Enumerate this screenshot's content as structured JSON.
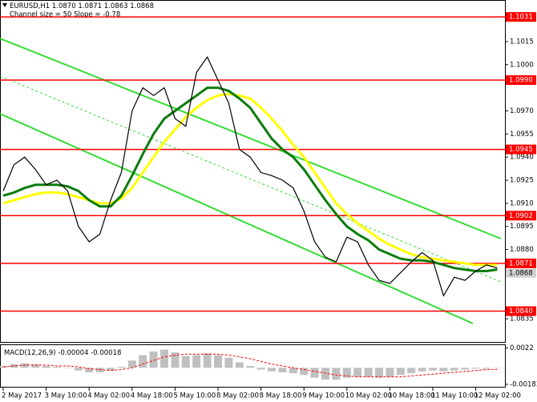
{
  "chart_data": [
    {
      "type": "line",
      "symbol": "EURUSD,H1",
      "ohlc": {
        "values": [
          1.087,
          1.0871,
          1.0863,
          1.0868
        ],
        "value_labels": [
          "1.0870",
          "1.0871",
          "1.0863",
          "1.0868"
        ]
      },
      "annotation": "Channel size = 50 Slope = -0.78",
      "categories": [
        "2 May 2017",
        null,
        null,
        null,
        "3 May 10:00",
        null,
        null,
        null,
        "4 May 02:00",
        null,
        null,
        null,
        "4 May 18:00",
        null,
        null,
        null,
        "5 May 10:00",
        null,
        null,
        null,
        "8 May 02:00",
        null,
        null,
        null,
        "8 May 18:00",
        null,
        null,
        null,
        "9 May 10:00",
        null,
        null,
        null,
        "10 May 02:00",
        null,
        null,
        null,
        "10 May 18:00",
        null,
        null,
        null,
        "11 May 10:00",
        null,
        null,
        null,
        "12 May 02:00",
        null,
        null
      ],
      "series": [
        {
          "color": "#000000",
          "values": [
            1.0918,
            1.0935,
            1.094,
            1.0932,
            1.0922,
            1.0925,
            1.0918,
            1.0895,
            1.0885,
            1.089,
            1.0912,
            1.093,
            1.097,
            1.0985,
            1.098,
            1.0985,
            1.0965,
            1.096,
            1.0995,
            1.1005,
            1.099,
            1.0975,
            1.0945,
            1.094,
            1.093,
            1.0928,
            1.0925,
            1.092,
            1.0905,
            1.0885,
            1.0875,
            1.0872,
            1.0888,
            1.0885,
            1.087,
            1.086,
            1.0858,
            1.0865,
            1.0872,
            1.0878,
            1.0873,
            1.085,
            1.0862,
            1.086,
            1.0866,
            1.087,
            1.0868
          ]
        },
        {
          "color": "#0b7d0b",
          "values": [
            1.0915,
            1.0917,
            1.092,
            1.0922,
            1.0922,
            1.0922,
            1.0921,
            1.0918,
            1.0912,
            1.0908,
            1.0908,
            1.0915,
            1.0928,
            1.0942,
            1.0955,
            1.0965,
            1.097,
            1.0975,
            1.098,
            1.0985,
            1.0985,
            1.0983,
            1.0978,
            1.0972,
            1.0962,
            1.0952,
            1.0945,
            1.094,
            1.0932,
            1.0922,
            1.0912,
            1.0903,
            1.0895,
            1.089,
            1.0886,
            1.088,
            1.0877,
            1.0874,
            1.0873,
            1.0873,
            1.0872,
            1.087,
            1.0868,
            1.0867,
            1.0866,
            1.0866,
            1.0867
          ]
        },
        {
          "color": "#ffff00",
          "values": [
            1.091,
            1.0912,
            1.0914,
            1.0916,
            1.0917,
            1.0917,
            1.0916,
            1.0914,
            1.0912,
            1.091,
            1.091,
            1.0913,
            1.092,
            1.093,
            1.094,
            1.095,
            1.0958,
            1.0966,
            1.0972,
            1.0977,
            1.098,
            1.0981,
            1.098,
            1.0978,
            1.0972,
            1.0965,
            1.0957,
            1.0948,
            1.094,
            1.093,
            1.092,
            1.091,
            1.0903,
            1.0897,
            1.0892,
            1.0887,
            1.0883,
            1.088,
            1.0877,
            1.0875,
            1.0874,
            1.0873,
            1.0872,
            1.0871,
            1.087,
            1.087,
            1.087
          ]
        }
      ],
      "ylim": [
        1.082,
        1.1042
      ],
      "yticks": [
        1.1015,
        {
          "value": 1.1,
          "label": "1.1000"
        },
        {
          "value": 1.097,
          "label": "1.0970"
        },
        1.0955,
        {
          "value": 1.094,
          "label": "1.0940"
        },
        1.0925,
        {
          "value": 1.091,
          "label": "1.0910"
        },
        1.0895,
        {
          "value": 1.088,
          "label": "1.0880"
        },
        1.0865,
        1.0835
      ],
      "levels": [
        1.1031,
        {
          "value": 1.099,
          "label": "1.0990"
        },
        1.0945,
        1.0902,
        1.0871,
        {
          "value": 1.084,
          "label": "1.0840"
        }
      ],
      "level_color": "#ff0000",
      "last_price": 1.0868
    },
    {
      "type": "bar",
      "title": "MACD(12,26,9)",
      "series": [
        {
          "type": "bar",
          "color": "#c0c0c0",
          "values": [
            0.0002,
            0.0004,
            0.0005,
            0.0004,
            0.0002,
            0.0001,
            0.0,
            -0.0003,
            -0.0005,
            -0.0005,
            -0.0003,
            0.0001,
            0.0008,
            0.0014,
            0.0018,
            0.002,
            0.0017,
            0.0013,
            0.0014,
            0.0016,
            0.0014,
            0.0011,
            0.0006,
            0.0002,
            -0.0002,
            -0.0004,
            -0.0005,
            -0.0006,
            -0.0008,
            -0.0011,
            -0.0013,
            -0.0013,
            -0.0011,
            -0.001,
            -0.001,
            -0.0011,
            -0.001,
            -0.0008,
            -0.0006,
            -0.0004,
            -0.0003,
            -0.0004,
            -0.0003,
            -0.0002,
            -0.0001,
            -0.0001,
            -4e-05
          ]
        },
        {
          "type": "line",
          "color": "#ff0000",
          "dashed": true,
          "values": [
            0.0001,
            0.0002,
            0.0003,
            0.0003,
            0.0003,
            0.0002,
            0.0002,
            0.0001,
            -0.0001,
            -0.0002,
            -0.0003,
            -0.0002,
            0.0,
            0.0004,
            0.0008,
            0.0012,
            0.0014,
            0.0015,
            0.0015,
            0.0015,
            0.0015,
            0.0014,
            0.0012,
            0.001,
            0.0007,
            0.0004,
            0.0002,
            0.0,
            -0.0002,
            -0.0004,
            -0.0006,
            -0.0008,
            -0.0009,
            -0.001,
            -0.001,
            -0.001,
            -0.001,
            -0.001,
            -0.0009,
            -0.0008,
            -0.0007,
            -0.0006,
            -0.0005,
            -0.0004,
            -0.0003,
            -0.0002,
            -0.00018
          ]
        }
      ],
      "ylim": [
        -0.0021,
        0.0025
      ],
      "yticks": [
        0.0022,
        -0.00183
      ]
    }
  ]
}
